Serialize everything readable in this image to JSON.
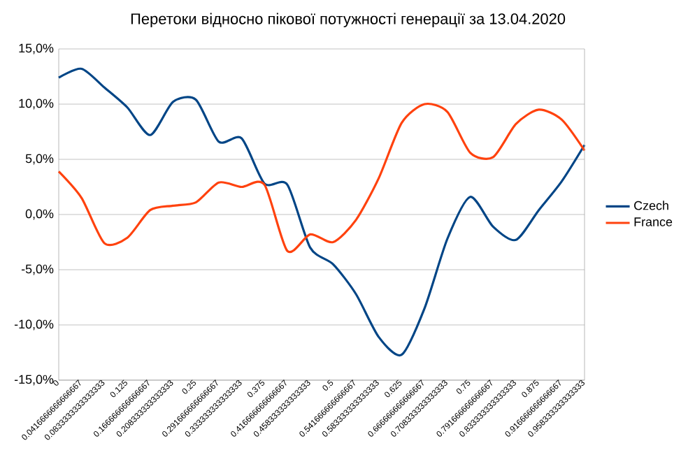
{
  "chart_data": {
    "type": "line",
    "title": "Перетоки відносно пікової потужності генерації за 13.04.2020",
    "categories": [
      "0",
      "0.0416666666666667",
      "0.0833333333333333",
      "0.125",
      "0.166666666666667",
      "0.208333333333333",
      "0.25",
      "0.291666666666667",
      "0.333333333333333",
      "0.375",
      "0.416666666666667",
      "0.458333333333333",
      "0.5",
      "0.541666666666667",
      "0.583333333333333",
      "0.625",
      "0.666666666666667",
      "0.708333333333333",
      "0.75",
      "0.791666666666667",
      "0.833333333333333",
      "0.875",
      "0.916666666666667",
      "0.958333333333333"
    ],
    "series": [
      {
        "name": "Czech",
        "color": "#004586",
        "values": [
          12.4,
          13.2,
          11.5,
          9.7,
          7.2,
          10.2,
          10.4,
          6.6,
          6.9,
          2.8,
          2.7,
          -3.0,
          -4.5,
          -7.2,
          -11.1,
          -12.7,
          -8.5,
          -2.2,
          1.6,
          -1.1,
          -2.3,
          0.4,
          3.0,
          6.3
        ]
      },
      {
        "name": "France",
        "color": "#ff420e",
        "values": [
          3.9,
          1.5,
          -2.6,
          -2.1,
          0.4,
          0.8,
          1.1,
          2.9,
          2.5,
          2.7,
          -3.3,
          -1.8,
          -2.5,
          -0.5,
          3.3,
          8.3,
          10.0,
          9.3,
          5.6,
          5.2,
          8.2,
          9.5,
          8.6,
          5.8
        ]
      }
    ],
    "ylim": [
      -15,
      15
    ],
    "yticks": [
      {
        "value": -15,
        "label": "-15,0%"
      },
      {
        "value": -10,
        "label": "-10,0%"
      },
      {
        "value": -5,
        "label": "-5,0%"
      },
      {
        "value": 0,
        "label": "0,0%"
      },
      {
        "value": 5,
        "label": "5,0%"
      },
      {
        "value": 10,
        "label": "10,0%"
      },
      {
        "value": 15,
        "label": "15,0%"
      }
    ],
    "grid": "y",
    "legend": "right"
  }
}
